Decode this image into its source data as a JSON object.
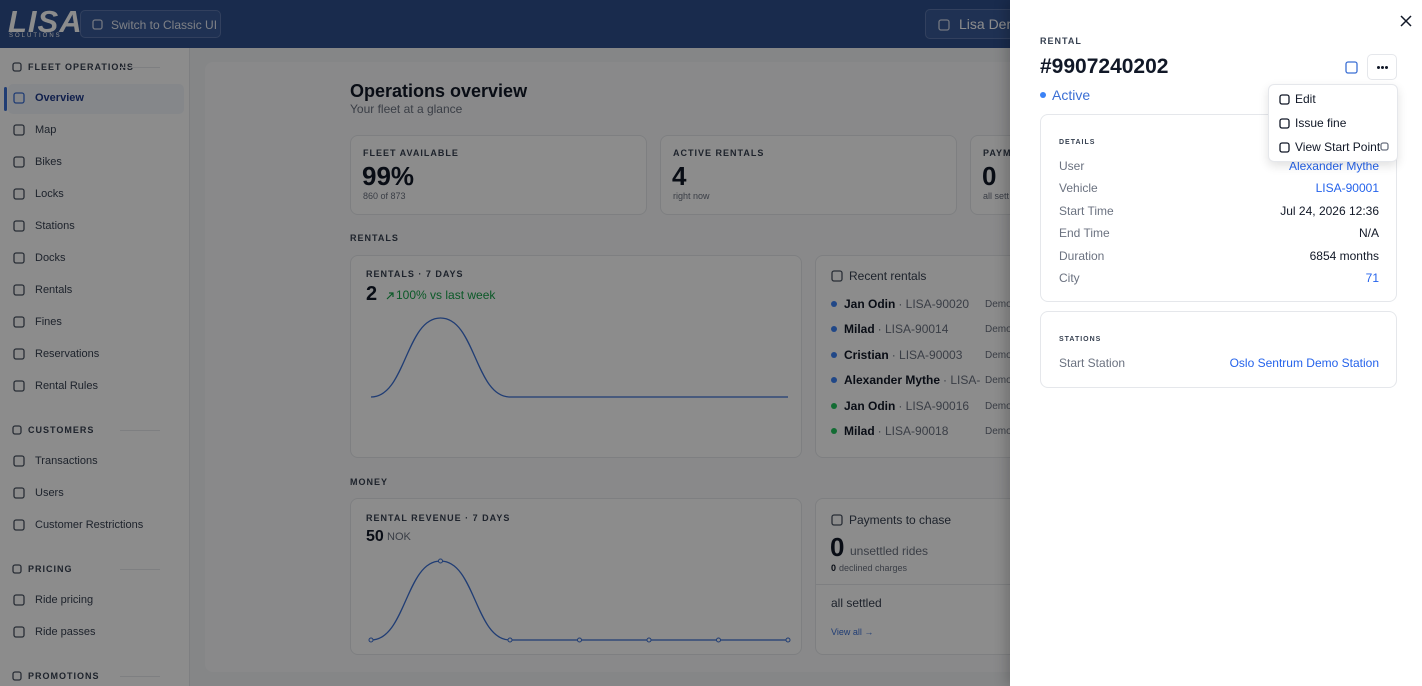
{
  "header": {
    "logo": "LISA",
    "logo_subtitle": "SOLUTIONS",
    "switch_button": "Switch to Classic UI",
    "organization": "Lisa Dem"
  },
  "sidebar": {
    "active": "Overview",
    "sections": [
      {
        "title": "FLEET OPERATIONS",
        "items": [
          "Overview",
          "Map",
          "Bikes",
          "Locks",
          "Stations",
          "Docks",
          "Rentals",
          "Fines",
          "Reservations",
          "Rental Rules"
        ]
      },
      {
        "title": "CUSTOMERS",
        "items": [
          "Transactions",
          "Users",
          "Customer Restrictions"
        ]
      },
      {
        "title": "PRICING",
        "items": [
          "Ride pricing",
          "Ride passes"
        ]
      },
      {
        "title": "PROMOTIONS",
        "items": []
      }
    ]
  },
  "main": {
    "title": "Operations overview",
    "subtitle": "Your fleet at a glance",
    "stats": [
      {
        "label": "FLEET AVAILABLE",
        "value": "99%",
        "note": "860 of 873"
      },
      {
        "label": "ACTIVE RENTALS",
        "value": "4",
        "note": "right now"
      },
      {
        "label": "PAYM",
        "value": "0",
        "note": "all sett"
      }
    ],
    "rentals_section": "RENTALS",
    "rentals_chart": {
      "title": "RENTALS · 7 DAYS",
      "total": "2",
      "trend": "100% vs last week",
      "color": "#3b6fd4",
      "values": [
        0,
        2,
        0,
        0,
        0,
        0,
        0
      ]
    },
    "recent_rentals": {
      "title": "Recent rentals",
      "rows": [
        {
          "name": "Jan Odin",
          "vehicle": "· LISA-90020",
          "city": "Demo",
          "dot_color": "#3b82f6"
        },
        {
          "name": "Milad",
          "vehicle": "· LISA-90014",
          "city": "Demo",
          "dot_color": "#3b82f6"
        },
        {
          "name": "Cristian",
          "vehicle": "· LISA-90003",
          "city": "Demo",
          "dot_color": "#3b82f6"
        },
        {
          "name": "Alexander Mythe",
          "vehicle": "· LISA-",
          "city": "Demo",
          "dot_color": "#3b82f6"
        },
        {
          "name": "Jan Odin",
          "vehicle": "· LISA-90016",
          "city": "Demo",
          "dot_color": "#22c55e"
        },
        {
          "name": "Milad",
          "vehicle": "· LISA-90018",
          "city": "Demo",
          "dot_color": "#22c55e"
        }
      ]
    },
    "money_section": "MONEY",
    "revenue_chart": {
      "title": "RENTAL REVENUE · 7 DAYS",
      "total": "50",
      "currency": "NOK",
      "color": "#3b6fd4",
      "values": [
        0,
        50,
        0,
        0,
        0,
        0,
        0
      ]
    },
    "payments": {
      "title": "Payments to chase",
      "unsettled": "0",
      "unsettled_label": "unsettled rides",
      "declined": "0",
      "declined_label": "declined charges",
      "status": "all settled",
      "link": "View all →"
    }
  },
  "drawer": {
    "kicker": "RENTAL",
    "title": "#9907240202",
    "status": "Active",
    "details": {
      "title": "DETAILS",
      "rows": [
        {
          "label": "User",
          "value": "Alexander Mythe",
          "link": true
        },
        {
          "label": "Vehicle",
          "value": "LISA-90001",
          "link": true
        },
        {
          "label": "Start Time",
          "value": "Jul 24, 2026 12:36",
          "link": false
        },
        {
          "label": "End Time",
          "value": "N/A",
          "link": false
        },
        {
          "label": "Duration",
          "value": "6854 months",
          "link": false
        },
        {
          "label": "City",
          "value": "71",
          "link": true
        }
      ]
    },
    "stations": {
      "title": "STATIONS",
      "rows": [
        {
          "label": "Start Station",
          "value": "Oslo Sentrum Demo Station",
          "link": true
        }
      ]
    },
    "menu": [
      "Edit",
      "Issue fine",
      "View Start Point"
    ]
  }
}
